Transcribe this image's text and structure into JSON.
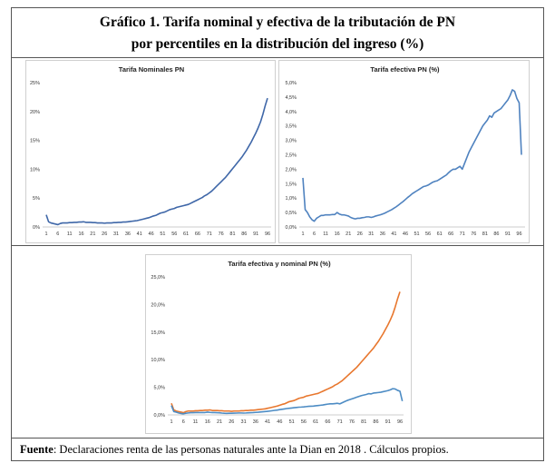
{
  "header": {
    "line1": "Gráfico 1. Tarifa nominal y efectiva de la tributación de PN",
    "line2": "por percentiles en la distribución del ingreso (%)"
  },
  "footer": {
    "label": "Fuente",
    "text": ": Declaraciones renta de las personas naturales ante la Dian en 2018 . Cálculos propios."
  },
  "colors": {
    "nominal": "#3f67a8",
    "efectiva_top": "#4f82bf",
    "efectiva_bottom": "#4d8cc4",
    "nominal_bottom": "#e8772e"
  },
  "chart_data": [
    {
      "type": "line",
      "title": "Tarifa Nominales PN",
      "x_ticks": [
        "1",
        "6",
        "11",
        "16",
        "21",
        "26",
        "31",
        "36",
        "41",
        "46",
        "51",
        "56",
        "61",
        "66",
        "71",
        "76",
        "81",
        "86",
        "91",
        "96"
      ],
      "y_ticks": [
        "0%",
        "5%",
        "10%",
        "15%",
        "20%",
        "25%"
      ],
      "ylim": [
        0,
        25
      ],
      "series": [
        {
          "values": [
            2.1,
            0.9,
            0.7,
            0.6,
            0.5,
            0.4,
            0.6,
            0.7,
            0.7,
            0.7,
            0.75,
            0.75,
            0.8,
            0.8,
            0.85,
            0.85,
            0.9,
            0.8,
            0.8,
            0.8,
            0.75,
            0.75,
            0.7,
            0.7,
            0.7,
            0.65,
            0.7,
            0.7,
            0.7,
            0.75,
            0.75,
            0.8,
            0.8,
            0.85,
            0.85,
            0.9,
            0.95,
            1.0,
            1.05,
            1.1,
            1.2,
            1.3,
            1.4,
            1.5,
            1.6,
            1.75,
            1.9,
            2.0,
            2.2,
            2.4,
            2.5,
            2.6,
            2.8,
            3.0,
            3.1,
            3.2,
            3.4,
            3.5,
            3.6,
            3.7,
            3.8,
            3.9,
            4.1,
            4.3,
            4.5,
            4.7,
            4.9,
            5.1,
            5.4,
            5.6,
            5.9,
            6.2,
            6.6,
            7.0,
            7.4,
            7.8,
            8.2,
            8.6,
            9.1,
            9.6,
            10.1,
            10.6,
            11.1,
            11.6,
            12.1,
            12.7,
            13.3,
            14.0,
            14.7,
            15.5,
            16.3,
            17.2,
            18.2,
            19.5,
            21.0,
            22.3
          ]
        }
      ]
    },
    {
      "type": "line",
      "title": "Tarifa efectiva PN (%)",
      "x_ticks": [
        "1",
        "6",
        "11",
        "16",
        "21",
        "26",
        "31",
        "36",
        "41",
        "46",
        "51",
        "56",
        "61",
        "66",
        "71",
        "76",
        "81",
        "86",
        "91",
        "96"
      ],
      "y_ticks": [
        "0,0%",
        "0,5%",
        "1,0%",
        "1,5%",
        "2,0%",
        "2,5%",
        "3,0%",
        "3,5%",
        "4,0%",
        "4,5%",
        "5,0%"
      ],
      "ylim": [
        0,
        5
      ],
      "series": [
        {
          "values": [
            1.7,
            0.6,
            0.5,
            0.35,
            0.25,
            0.2,
            0.3,
            0.35,
            0.4,
            0.4,
            0.42,
            0.42,
            0.42,
            0.43,
            0.43,
            0.5,
            0.45,
            0.42,
            0.42,
            0.4,
            0.38,
            0.33,
            0.3,
            0.28,
            0.3,
            0.3,
            0.32,
            0.33,
            0.35,
            0.35,
            0.33,
            0.35,
            0.38,
            0.4,
            0.42,
            0.45,
            0.48,
            0.52,
            0.56,
            0.6,
            0.65,
            0.7,
            0.76,
            0.82,
            0.88,
            0.95,
            1.02,
            1.08,
            1.15,
            1.2,
            1.25,
            1.3,
            1.35,
            1.4,
            1.42,
            1.45,
            1.5,
            1.55,
            1.58,
            1.6,
            1.65,
            1.7,
            1.75,
            1.8,
            1.88,
            1.95,
            2.0,
            2.0,
            2.05,
            2.1,
            2.0,
            2.2,
            2.4,
            2.6,
            2.75,
            2.9,
            3.05,
            3.2,
            3.35,
            3.5,
            3.6,
            3.7,
            3.85,
            3.8,
            3.95,
            4.0,
            4.05,
            4.1,
            4.2,
            4.3,
            4.4,
            4.55,
            4.75,
            4.7,
            4.45,
            4.3,
            2.5
          ]
        }
      ]
    },
    {
      "type": "line",
      "title": "Tarifa efectiva y nominal PN (%)",
      "x_ticks": [
        "1",
        "6",
        "11",
        "16",
        "21",
        "26",
        "31",
        "36",
        "41",
        "46",
        "51",
        "56",
        "61",
        "66",
        "71",
        "76",
        "81",
        "86",
        "91",
        "96"
      ],
      "y_ticks": [
        "0,0%",
        "5,0%",
        "10,0%",
        "15,0%",
        "20,0%",
        "25,0%"
      ],
      "ylim": [
        0,
        25
      ],
      "series": [
        {
          "values": [
            2.1,
            0.9,
            0.7,
            0.6,
            0.5,
            0.4,
            0.6,
            0.7,
            0.7,
            0.7,
            0.75,
            0.75,
            0.8,
            0.8,
            0.85,
            0.85,
            0.9,
            0.8,
            0.8,
            0.8,
            0.75,
            0.75,
            0.7,
            0.7,
            0.7,
            0.65,
            0.7,
            0.7,
            0.7,
            0.75,
            0.75,
            0.8,
            0.8,
            0.85,
            0.85,
            0.9,
            0.95,
            1.0,
            1.05,
            1.1,
            1.2,
            1.3,
            1.4,
            1.5,
            1.6,
            1.75,
            1.9,
            2.0,
            2.2,
            2.4,
            2.5,
            2.6,
            2.8,
            3.0,
            3.1,
            3.2,
            3.4,
            3.5,
            3.6,
            3.7,
            3.8,
            3.9,
            4.1,
            4.3,
            4.5,
            4.7,
            4.9,
            5.1,
            5.4,
            5.6,
            5.9,
            6.2,
            6.6,
            7.0,
            7.4,
            7.8,
            8.2,
            8.6,
            9.1,
            9.6,
            10.1,
            10.6,
            11.1,
            11.6,
            12.1,
            12.7,
            13.3,
            14.0,
            14.7,
            15.5,
            16.3,
            17.2,
            18.2,
            19.5,
            21.0,
            22.3
          ]
        },
        {
          "values": [
            1.7,
            0.6,
            0.5,
            0.35,
            0.25,
            0.2,
            0.3,
            0.35,
            0.4,
            0.4,
            0.42,
            0.42,
            0.42,
            0.43,
            0.43,
            0.5,
            0.45,
            0.42,
            0.42,
            0.4,
            0.38,
            0.33,
            0.3,
            0.28,
            0.3,
            0.3,
            0.32,
            0.33,
            0.35,
            0.35,
            0.33,
            0.35,
            0.38,
            0.4,
            0.42,
            0.45,
            0.48,
            0.52,
            0.56,
            0.6,
            0.65,
            0.7,
            0.76,
            0.82,
            0.88,
            0.95,
            1.02,
            1.08,
            1.15,
            1.2,
            1.25,
            1.3,
            1.35,
            1.4,
            1.42,
            1.45,
            1.5,
            1.55,
            1.58,
            1.6,
            1.65,
            1.7,
            1.75,
            1.8,
            1.88,
            1.95,
            2.0,
            2.0,
            2.05,
            2.1,
            2.0,
            2.2,
            2.4,
            2.6,
            2.75,
            2.9,
            3.05,
            3.2,
            3.35,
            3.5,
            3.6,
            3.7,
            3.85,
            3.8,
            3.95,
            4.0,
            4.05,
            4.1,
            4.2,
            4.3,
            4.4,
            4.55,
            4.75,
            4.7,
            4.45,
            4.3,
            2.5
          ]
        }
      ]
    }
  ]
}
